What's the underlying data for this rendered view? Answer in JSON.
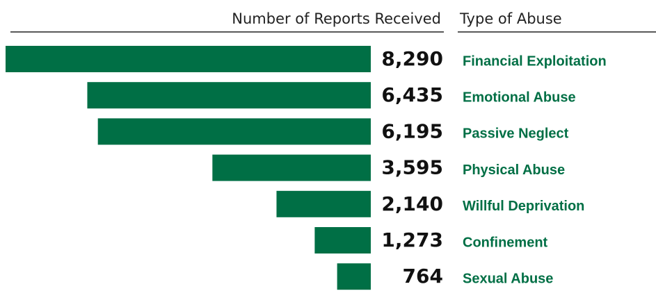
{
  "chart_data": {
    "type": "bar",
    "orientation": "horizontal",
    "value_header": "Number of Reports Received",
    "category_header": "Type of Abuse",
    "categories": [
      "Financial Exploitation",
      "Emotional Abuse",
      "Passive Neglect",
      "Physical Abuse",
      "Willful Deprivation",
      "Confinement",
      "Sexual Abuse"
    ],
    "values": [
      8290,
      6435,
      6195,
      3595,
      2140,
      1273,
      764
    ],
    "value_labels": [
      "8,290",
      "6,435",
      "6,195",
      "3,595",
      "2,140",
      "1,273",
      "764"
    ],
    "color": "#006f45"
  }
}
